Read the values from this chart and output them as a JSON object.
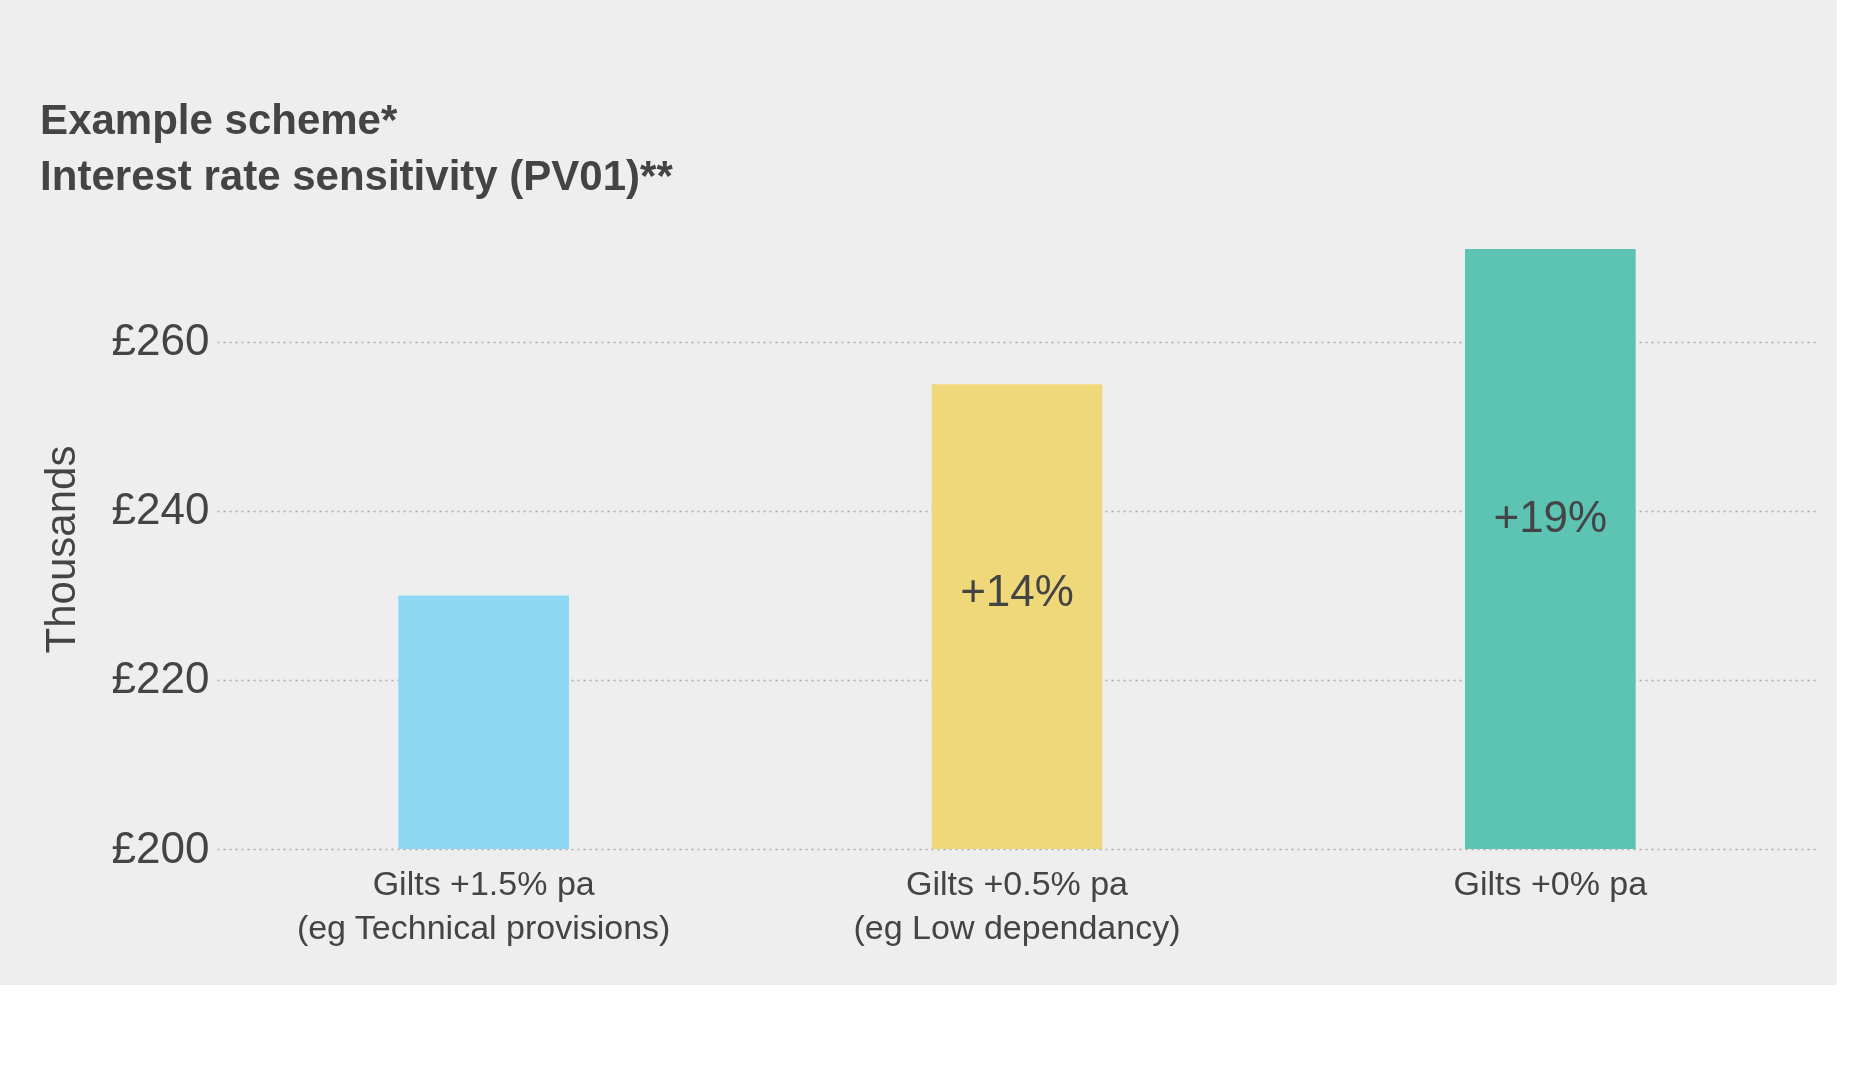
{
  "chart_data": {
    "type": "bar",
    "title": "Example scheme*",
    "subtitle": "Interest rate sensitivity (PV01)**",
    "ylabel": "Thousands",
    "categories": [
      "Gilts +1.5% pa\n(eg Technical provisions)",
      "Gilts +0.5% pa\n(eg Low dependancy)",
      "Gilts +0% pa"
    ],
    "values": [
      230,
      255,
      271
    ],
    "colors": [
      "#8ed8f5",
      "#efd87a",
      "#5dc4b4"
    ],
    "annotations": [
      "+14%",
      "+19%"
    ],
    "ylim": [
      200,
      271
    ],
    "yticks": [
      {
        "value": 200,
        "label": "£200"
      },
      {
        "value": 220,
        "label": "£220"
      },
      {
        "value": 240,
        "label": "£240"
      },
      {
        "value": 260,
        "label": "£260"
      }
    ],
    "grid": "y"
  }
}
